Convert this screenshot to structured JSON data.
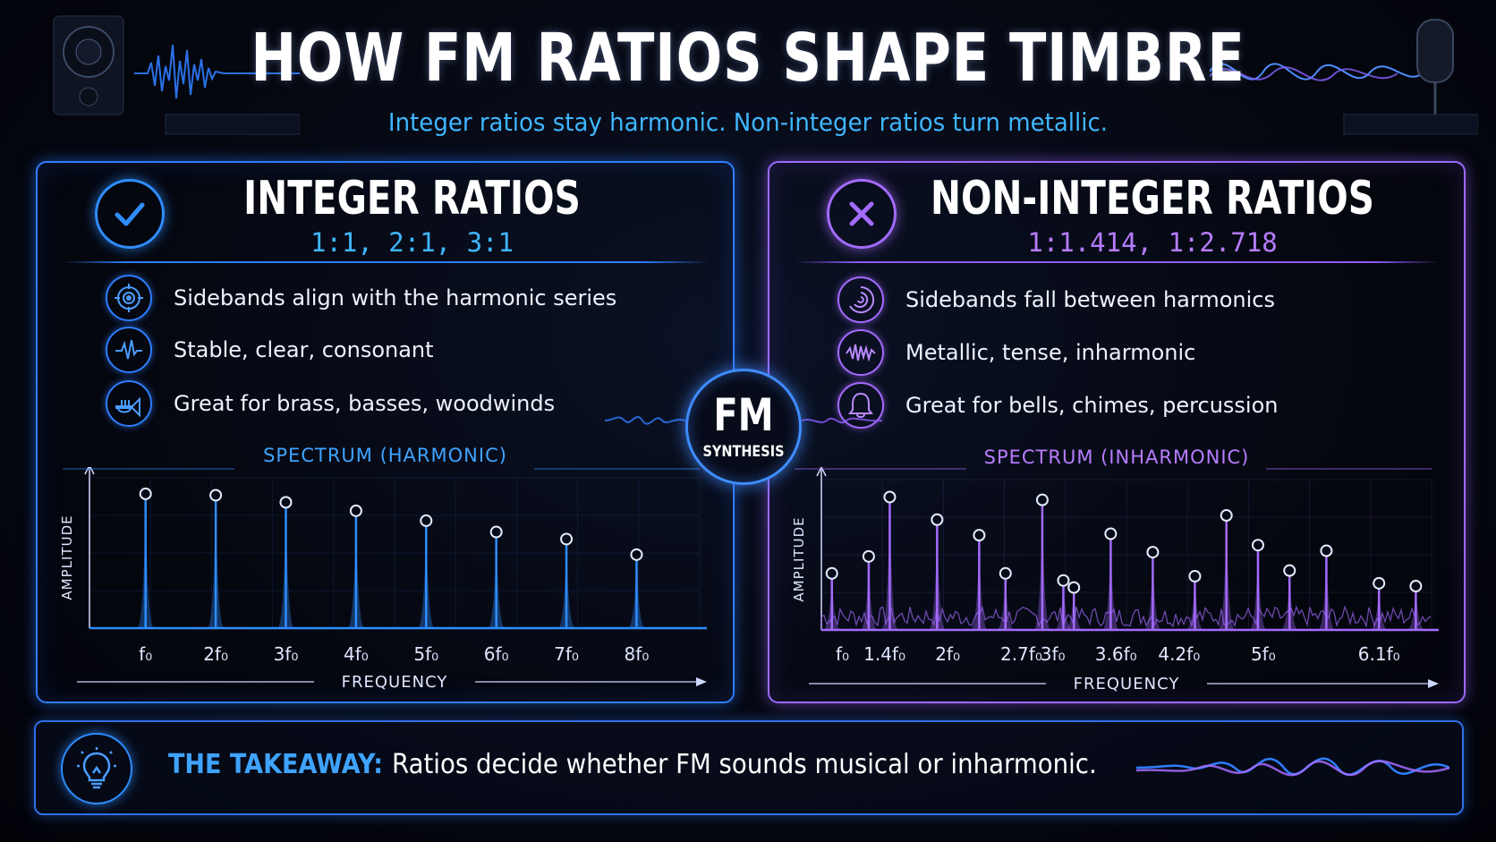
{
  "header": {
    "title": "HOW FM RATIOS SHAPE TIMBRE",
    "subtitle": "Integer ratios stay harmonic. Non-integer ratios turn metallic."
  },
  "left_panel": {
    "badge_icon": "check-icon",
    "title": "INTEGER RATIOS",
    "ratios": "1:1, 2:1, 3:1",
    "accent": "#2f8dff",
    "bullets": [
      {
        "icon": "target-icon",
        "text": "Sidebands align with the harmonic series"
      },
      {
        "icon": "waveform-icon",
        "text": "Stable, clear, consonant"
      },
      {
        "icon": "trumpet-icon",
        "text": "Great for brass, basses, woodwinds"
      }
    ],
    "spectrum_title": "SPECTRUM (HARMONIC)"
  },
  "right_panel": {
    "badge_icon": "x-icon",
    "title": "NON-INTEGER RATIOS",
    "ratios": "1:1.414, 1:2.718",
    "accent": "#a46bff",
    "bullets": [
      {
        "icon": "spiral-icon",
        "text": "Sidebands fall between harmonics"
      },
      {
        "icon": "jagged-wave-icon",
        "text": "Metallic, tense, inharmonic"
      },
      {
        "icon": "bell-icon",
        "text": "Great for bells, chimes, percussion"
      }
    ],
    "spectrum_title": "SPECTRUM (INHARMONIC)"
  },
  "center": {
    "main": "FM",
    "sub": "SYNTHESIS"
  },
  "takeaway": {
    "icon": "lightbulb-icon",
    "label": "THE TAKEAWAY:",
    "text": "Ratios decide whether FM sounds musical or inharmonic."
  },
  "chart_data": [
    {
      "type": "bar",
      "title": "SPECTRUM (HARMONIC)",
      "xlabel": "FREQUENCY",
      "ylabel": "AMPLITUDE",
      "categories": [
        "f₀",
        "2f₀",
        "3f₀",
        "4f₀",
        "5f₀",
        "6f₀",
        "7f₀",
        "8f₀"
      ],
      "x": [
        1,
        2,
        3,
        4,
        5,
        6,
        7,
        8
      ],
      "values": [
        0.95,
        0.94,
        0.89,
        0.83,
        0.76,
        0.68,
        0.63,
        0.52
      ],
      "ylim": [
        0,
        1
      ],
      "xlim": [
        0.2,
        8.9
      ],
      "color": "#2f8dff",
      "grid": true
    },
    {
      "type": "bar",
      "title": "SPECTRUM (INHARMONIC)",
      "xlabel": "FREQUENCY",
      "ylabel": "AMPLITUDE",
      "categories": [
        "f₀",
        "1.4f₀",
        "2f₀",
        "2.7f₀",
        "3f₀",
        "3.6f₀",
        "4.2f₀",
        "5f₀",
        "6.1f₀"
      ],
      "tick_positions": [
        1,
        1.4,
        2,
        2.7,
        3,
        3.6,
        4.2,
        5,
        6.1
      ],
      "x": [
        0.9,
        1.25,
        1.45,
        1.9,
        2.3,
        2.55,
        2.9,
        3.1,
        3.2,
        3.55,
        3.95,
        4.35,
        4.65,
        4.95,
        5.25,
        5.6,
        6.1,
        6.45
      ],
      "values": [
        0.4,
        0.52,
        0.94,
        0.78,
        0.67,
        0.4,
        0.92,
        0.35,
        0.3,
        0.68,
        0.55,
        0.38,
        0.81,
        0.6,
        0.42,
        0.56,
        0.33,
        0.31
      ],
      "ylim": [
        0,
        1
      ],
      "xlim": [
        0.8,
        6.6
      ],
      "color": "#a46bff",
      "grid": true
    }
  ]
}
